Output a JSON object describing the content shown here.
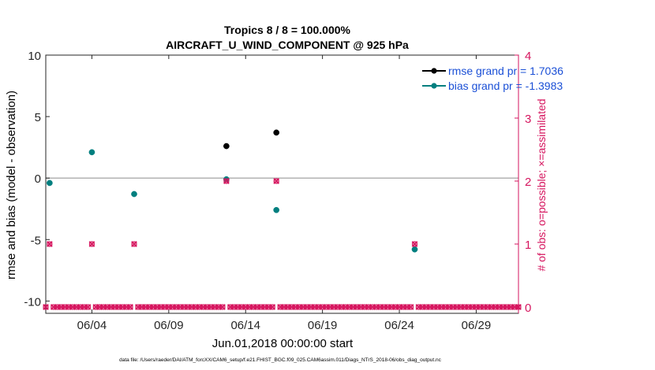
{
  "chart_data": {
    "type": "scatter",
    "title": "Tropics 8 / 8 = 100.000%",
    "subtitle": "AIRCRAFT_U_WIND_COMPONENT @ 925 hPa",
    "xlabel": "Jun.01,2018 00:00:00 start",
    "ylabel": "rmse and bias (model - observation)",
    "y2label": "# of obs: o=possible; ×=assimilated",
    "footnote": "data file: /Users/raeder/DAI/ATM_forcXX/CAM6_setup/f.e21.FHIST_BGC.f09_025.CAM6assim.011/Diags_NTrS_2018-06/obs_diag_output.nc",
    "xlim": [
      1,
      31.75
    ],
    "ylim": [
      -11,
      10
    ],
    "y2lim": [
      -0.1,
      4
    ],
    "x_ticks": [
      4,
      9,
      14,
      19,
      24,
      29
    ],
    "x_tick_labels": [
      "06/04",
      "06/09",
      "06/14",
      "06/19",
      "06/24",
      "06/29"
    ],
    "y_ticks": [
      -10,
      -5,
      0,
      5,
      10
    ],
    "y_tick_labels": [
      "-10",
      "-5",
      "0",
      "5",
      "10"
    ],
    "y2_ticks": [
      0,
      1,
      2,
      3,
      4
    ],
    "y2_tick_labels": [
      "0",
      "1",
      "2",
      "3",
      "4"
    ],
    "zero_line": 0,
    "legend": {
      "location": "top-right",
      "entries": [
        {
          "label": "rmse grand pr = 1.7036",
          "color": "#000000"
        },
        {
          "label": "bias grand pr = -1.3983",
          "color": "#007f7f"
        }
      ]
    },
    "series": [
      {
        "name": "rmse",
        "axis": "left",
        "color": "#000000",
        "x": [
          12.75,
          16.0
        ],
        "y": [
          2.6,
          3.7
        ]
      },
      {
        "name": "bias",
        "axis": "left",
        "color": "#007f7f",
        "x": [
          1.25,
          4.0,
          6.75,
          12.75,
          16.0,
          25.0
        ],
        "y": [
          -0.4,
          2.1,
          -1.3,
          -0.1,
          -2.6,
          -5.8
        ]
      },
      {
        "name": "obs possible/assimilated",
        "axis": "right",
        "color": "#d6165f",
        "x": [
          1.0,
          1.25,
          1.5,
          1.75,
          2.0,
          2.25,
          2.5,
          2.75,
          3.0,
          3.25,
          3.5,
          3.75,
          4.0,
          4.25,
          4.5,
          4.75,
          5.0,
          5.25,
          5.5,
          5.75,
          6.0,
          6.25,
          6.5,
          6.75,
          7.0,
          7.25,
          7.5,
          7.75,
          8.0,
          8.25,
          8.5,
          8.75,
          9.0,
          9.25,
          9.5,
          9.75,
          10.0,
          10.25,
          10.5,
          10.75,
          11.0,
          11.25,
          11.5,
          11.75,
          12.0,
          12.25,
          12.5,
          12.75,
          13.0,
          13.25,
          13.5,
          13.75,
          14.0,
          14.25,
          14.5,
          14.75,
          15.0,
          15.25,
          15.5,
          15.75,
          16.0,
          16.25,
          16.5,
          16.75,
          17.0,
          17.25,
          17.5,
          17.75,
          18.0,
          18.25,
          18.5,
          18.75,
          19.0,
          19.25,
          19.5,
          19.75,
          20.0,
          20.25,
          20.5,
          20.75,
          21.0,
          21.25,
          21.5,
          21.75,
          22.0,
          22.25,
          22.5,
          22.75,
          23.0,
          23.25,
          23.5,
          23.75,
          24.0,
          24.25,
          24.5,
          24.75,
          25.0,
          25.25,
          25.5,
          25.75,
          26.0,
          26.25,
          26.5,
          26.75,
          27.0,
          27.25,
          27.5,
          27.75,
          28.0,
          28.25,
          28.5,
          28.75,
          29.0,
          29.25,
          29.5,
          29.75,
          30.0,
          30.25,
          30.5,
          30.75,
          31.0,
          31.25,
          31.5,
          31.75
        ],
        "y": [
          0,
          1,
          0,
          0,
          0,
          0,
          0,
          0,
          0,
          0,
          0,
          0,
          1,
          0,
          0,
          0,
          0,
          0,
          0,
          0,
          0,
          0,
          0,
          1,
          0,
          0,
          0,
          0,
          0,
          0,
          0,
          0,
          0,
          0,
          0,
          0,
          0,
          0,
          0,
          0,
          0,
          0,
          0,
          0,
          0,
          0,
          0,
          2,
          0,
          0,
          0,
          0,
          0,
          0,
          0,
          0,
          0,
          0,
          0,
          0,
          2,
          0,
          0,
          0,
          0,
          0,
          0,
          0,
          0,
          0,
          0,
          0,
          0,
          0,
          0,
          0,
          0,
          0,
          0,
          0,
          0,
          0,
          0,
          0,
          0,
          0,
          0,
          0,
          0,
          0,
          0,
          0,
          0,
          0,
          0,
          0,
          1,
          0,
          0,
          0,
          0,
          0,
          0,
          0,
          0,
          0,
          0,
          0,
          0,
          0,
          0,
          0,
          0,
          0,
          0,
          0,
          0,
          0,
          0,
          0,
          0,
          0,
          0,
          0
        ]
      }
    ]
  }
}
